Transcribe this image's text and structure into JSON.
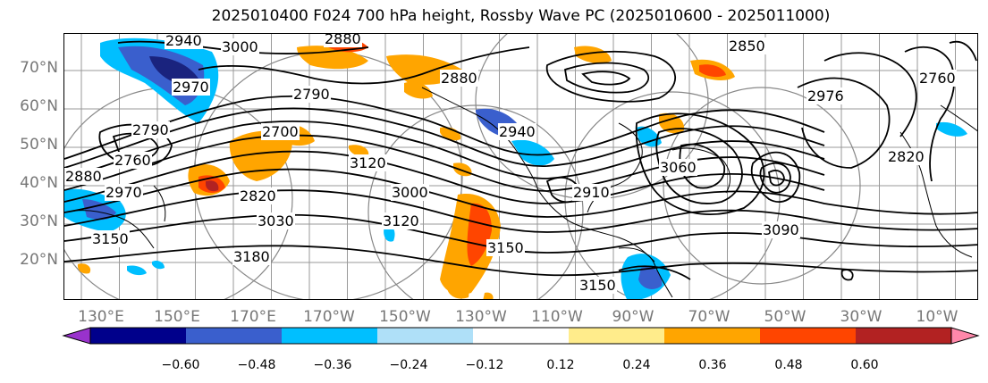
{
  "title": "2025010400 F024 700 hPa height, Rossby Wave PC (2025010600 - 2025011000)",
  "map": {
    "lat_labels": [
      "70°N",
      "60°N",
      "50°N",
      "40°N",
      "30°N",
      "20°N"
    ],
    "lon_labels": [
      "130°E",
      "150°E",
      "170°E",
      "170°W",
      "150°W",
      "130°W",
      "110°W",
      "90°W",
      "70°W",
      "50°W",
      "30°W",
      "10°W"
    ],
    "contour_labels": [
      "2940",
      "3000",
      "2880",
      "2850",
      "2790",
      "2760",
      "2880",
      "2970",
      "2880",
      "2790",
      "2700",
      "2820",
      "3000",
      "3120",
      "3150",
      "3030",
      "3180",
      "3150",
      "3090",
      "2910",
      "2940",
      "2820",
      "2976",
      "3120",
      "2970",
      "3150",
      "2760",
      "3060"
    ],
    "anomaly_colors": {
      "strong_negative": "#1a237e",
      "negative": "#3050c8",
      "mid_negative": "#00bfff",
      "positive": "#ffa500",
      "strong_positive": "#ff4500",
      "extreme_positive": "#b22222"
    }
  },
  "colorbar": {
    "tick_labels": [
      "−0.60",
      "−0.48",
      "−0.36",
      "−0.24",
      "−0.12",
      "0.12",
      "0.24",
      "0.36",
      "0.48",
      "0.60"
    ],
    "colors": [
      "#9932cc",
      "#00008b",
      "#3a5fcd",
      "#00bfff",
      "#afe0f8",
      "#ffffff",
      "#ffec8b",
      "#ffa500",
      "#ff4500",
      "#b22222",
      "#ff88aa"
    ]
  }
}
